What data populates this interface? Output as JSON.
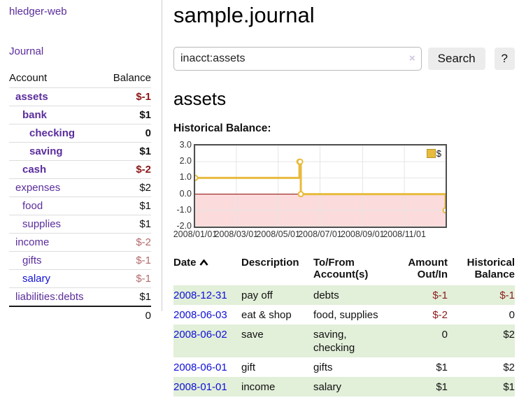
{
  "sidebar": {
    "app_title": "hledger-web",
    "nav_journal": "Journal",
    "accounts": {
      "col_account": "Account",
      "col_balance": "Balance",
      "rows": [
        {
          "name": "assets",
          "balance": "$-1"
        },
        {
          "name": "bank",
          "balance": "$1"
        },
        {
          "name": "checking",
          "balance": "0"
        },
        {
          "name": "saving",
          "balance": "$1"
        },
        {
          "name": "cash",
          "balance": "$-2"
        },
        {
          "name": "expenses",
          "balance": "$2"
        },
        {
          "name": "food",
          "balance": "$1"
        },
        {
          "name": "supplies",
          "balance": "$1"
        },
        {
          "name": "income",
          "balance": "$-2"
        },
        {
          "name": "gifts",
          "balance": "$-1"
        },
        {
          "name": "salary",
          "balance": "$-1"
        },
        {
          "name": "liabilities:debts",
          "balance": "$1"
        }
      ],
      "total": "0"
    }
  },
  "main": {
    "page_title": "sample.journal",
    "search": {
      "value": "inacct:assets",
      "clear": "×",
      "search_label": "Search",
      "help_label": "?"
    },
    "account_title": "assets",
    "section_label": "Historical Balance:"
  },
  "chart_data": {
    "type": "line",
    "step": true,
    "title": "Historical Balance",
    "legend_position": "top-right",
    "grid": true,
    "x_domain": [
      "2008-01-01",
      "2008-12-31"
    ],
    "ylim": [
      -2,
      3
    ],
    "y_ticks": [
      "3.0",
      "2.0",
      "1.0",
      "0.0",
      "-1.0",
      "-2.0"
    ],
    "x_ticks": [
      {
        "label": "2008/01/01",
        "date": "2008-01-01"
      },
      {
        "label": "2008/03/01",
        "date": "2008-03-01"
      },
      {
        "label": "2008/05/01",
        "date": "2008-05-01"
      },
      {
        "label": "2008/07/01",
        "date": "2008-07-01"
      },
      {
        "label": "2008/09/01",
        "date": "2008-09-01"
      },
      {
        "label": "2008/11/01",
        "date": "2008-11-01"
      }
    ],
    "series": [
      {
        "name": "$",
        "color": "#e8bb3d",
        "points": [
          [
            "2008-01-01",
            1
          ],
          [
            "2008-06-01",
            2
          ],
          [
            "2008-06-02",
            2
          ],
          [
            "2008-06-03",
            0
          ],
          [
            "2008-12-31",
            -1
          ]
        ]
      }
    ],
    "colors": {
      "negative_region": "#fbdbdb",
      "zero_line": "#8b0000",
      "grid": "#e6e6e6"
    }
  },
  "register": {
    "headers": {
      "date": "Date",
      "description": "Description",
      "account": "To/From Account(s)",
      "amount": "Amount Out/In",
      "balance": "Historical Balance"
    },
    "rows": [
      {
        "date": "2008-12-31",
        "description": "pay off",
        "account": "debts",
        "amount": "$-1",
        "balance": "$-1"
      },
      {
        "date": "2008-06-03",
        "description": "eat & shop",
        "account": "food, supplies",
        "amount": "$-2",
        "balance": "0"
      },
      {
        "date": "2008-06-02",
        "description": "save",
        "account": "saving, checking",
        "amount": "0",
        "balance": "$2"
      },
      {
        "date": "2008-06-01",
        "description": "gift",
        "account": "gifts",
        "amount": "$1",
        "balance": "$2"
      },
      {
        "date": "2008-01-01",
        "description": "income",
        "account": "salary",
        "amount": "$1",
        "balance": "$1"
      }
    ]
  }
}
